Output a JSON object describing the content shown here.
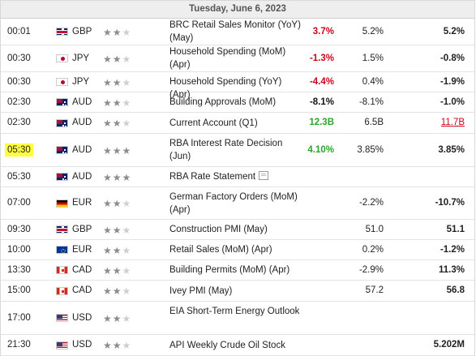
{
  "header": {
    "date": "Tuesday, June 6, 2023"
  },
  "rows": [
    {
      "time": "00:01",
      "currency": "GBP",
      "flag": "gbp",
      "impact": 2,
      "event": "BRC Retail Sales Monitor (YoY) (May)",
      "actual": "3.7%",
      "actual_color": "neg",
      "forecast": "5.2%",
      "previous": "5.2%",
      "h": 32
    },
    {
      "time": "00:30",
      "currency": "JPY",
      "flag": "jpy",
      "impact": 2,
      "event": "Household Spending (MoM) (Apr)",
      "actual": "-1.3%",
      "actual_color": "neg",
      "forecast": "1.5%",
      "previous": "-0.8%",
      "h": 32
    },
    {
      "time": "00:30",
      "currency": "JPY",
      "flag": "jpy",
      "impact": 2,
      "event": "Household Spending (YoY) (Apr)",
      "actual": "-4.4%",
      "actual_color": "neg",
      "forecast": "0.4%",
      "previous": "-1.9%",
      "h": 24
    },
    {
      "time": "02:30",
      "currency": "AUD",
      "flag": "aud",
      "impact": 2,
      "event": "Building Approvals (MoM)",
      "actual": "-8.1%",
      "actual_color": "plain",
      "forecast": "-8.1%",
      "previous": "-1.0%",
      "h": 24
    },
    {
      "time": "02:30",
      "currency": "AUD",
      "flag": "aud",
      "impact": 2,
      "event": "Current Account (Q1)",
      "actual": "12.3B",
      "actual_color": "pos",
      "forecast": "6.5B",
      "previous": "11.7B",
      "revised": true,
      "h": 25
    },
    {
      "time": "05:30",
      "currency": "AUD",
      "flag": "aud",
      "impact": 3,
      "event": "RBA Interest Rate Decision (Jun)",
      "actual": "4.10%",
      "actual_color": "pos",
      "forecast": "3.85%",
      "previous": "3.85%",
      "highlight": true,
      "h": 40
    },
    {
      "time": "05:30",
      "currency": "AUD",
      "flag": "aud",
      "impact": 3,
      "event": "RBA Rate Statement",
      "doc": true,
      "actual": "",
      "forecast": "",
      "previous": "",
      "h": 24
    },
    {
      "time": "07:00",
      "currency": "EUR",
      "flag": "eur",
      "impact": 2,
      "event": "German Factory Orders (MoM) (Apr)",
      "actual": "",
      "forecast": "-2.2%",
      "previous": "-10.7%",
      "h": 39
    },
    {
      "time": "09:30",
      "currency": "GBP",
      "flag": "gbp",
      "impact": 2,
      "event": "Construction PMI (May)",
      "actual": "",
      "forecast": "51.0",
      "previous": "51.1",
      "h": 24
    },
    {
      "time": "10:00",
      "currency": "EUR",
      "flag": "eu",
      "impact": 2,
      "event": "Retail Sales (MoM) (Apr)",
      "actual": "",
      "forecast": "0.2%",
      "previous": "-1.2%",
      "h": 24
    },
    {
      "time": "13:30",
      "currency": "CAD",
      "flag": "cad",
      "impact": 2,
      "event": "Building Permits (MoM) (Apr)",
      "actual": "",
      "forecast": "-2.9%",
      "previous": "11.3%",
      "h": 24
    },
    {
      "time": "15:00",
      "currency": "CAD",
      "flag": "cad",
      "impact": 2,
      "event": "Ivey PMI (May)",
      "actual": "",
      "forecast": "57.2",
      "previous": "56.8",
      "h": 25
    },
    {
      "time": "17:00",
      "currency": "USD",
      "flag": "usd",
      "impact": 2,
      "event": "EIA Short-Term Energy Outlook",
      "actual": "",
      "forecast": "",
      "previous": "",
      "h": 40
    },
    {
      "time": "21:30",
      "currency": "USD",
      "flag": "usd",
      "impact": 2,
      "event": "API Weekly Crude Oil Stock",
      "actual": "",
      "forecast": "",
      "previous": "5.202M",
      "h": 25
    }
  ]
}
